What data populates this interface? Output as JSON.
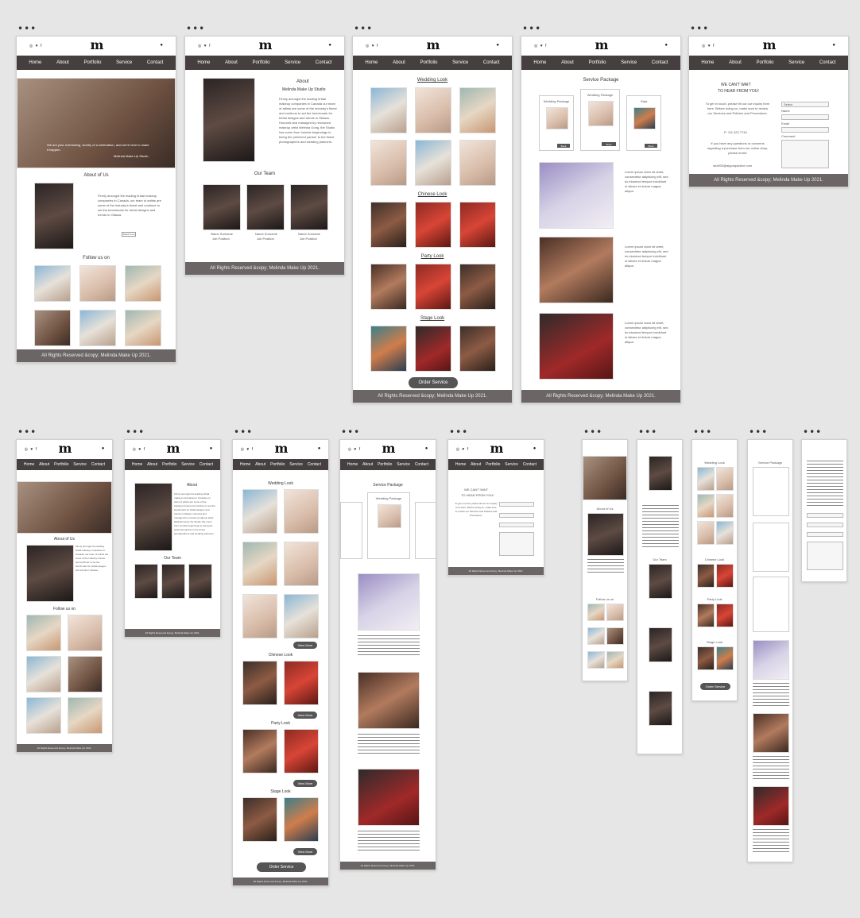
{
  "nav": {
    "home": "Home",
    "about": "About",
    "portfolio": "Portfolio",
    "service": "Service",
    "contact": "Contact"
  },
  "brand": {
    "logo": "m",
    "social": "◎ ♥ f"
  },
  "footer": "All Rights Reserved &copy; Melinda Make Up 2021.",
  "home": {
    "hero_caption": "We are your everlasting, worthy of a celebration, and we're here to make it happen.",
    "hero_credit": "Melinda Make Up Studio",
    "about_heading": "About of Us",
    "about_text": "Firmly amongst the leading bridal makeup companies in Canada, our team of artists are some of the industry's finest and continue to set the benchmark for bridal designs and trends in Ottawa.",
    "read_more": "Read more",
    "follow": "Follow us on"
  },
  "about": {
    "title": "About",
    "subtitle": "Melinda Make Up Studio",
    "body": "Firmly amongst the leading bridal makeup companies in Canada our team of artists are some of the industry's finest and continue to set the benchmark for bridal designs and trends in Ottawa. Honored and managed by renowned makeup artist Melinda Gong, the Studio has come from humble beginnings to being the preferred partner to the finest photographers and wedding planners.",
    "team_heading": "Our Team",
    "member_name": "Name Surname",
    "member_role": "Job Position"
  },
  "portfolio": {
    "wedding": "Wedding Look",
    "chinese": "Chinese Look",
    "party": "Party Look",
    "stage": "Stage Look",
    "order": "Order Service",
    "view_more": "View More"
  },
  "service": {
    "title": "Service Package",
    "pkg1": "Wedding Package",
    "pkg2": "Wedding Package",
    "pkg3": "Gala",
    "price": "$ details",
    "book": "Book",
    "lorem": "Lorem ipsum dolor sit amet, consectetur adipiscing elit, sed do eiusmod tempor incididunt ut labore et dolore magna aliqua."
  },
  "contact": {
    "heading_1": "WE CAN'T WAIT",
    "heading_2": "TO HEAR FROM YOU!",
    "intro": "To get in touch, please fill out our inquiry form here. Before doing so, make sure to review our Services and Policies and Procedures.",
    "phone": "P: 111.222.7744",
    "questions": "If you have any questions or concerns regarding a purchase from our online shop, please email:",
    "email": "shd003@algonquinlive.com",
    "select": "Select",
    "name_label": "Name",
    "email_label": "Email",
    "message_label": "Comment"
  }
}
